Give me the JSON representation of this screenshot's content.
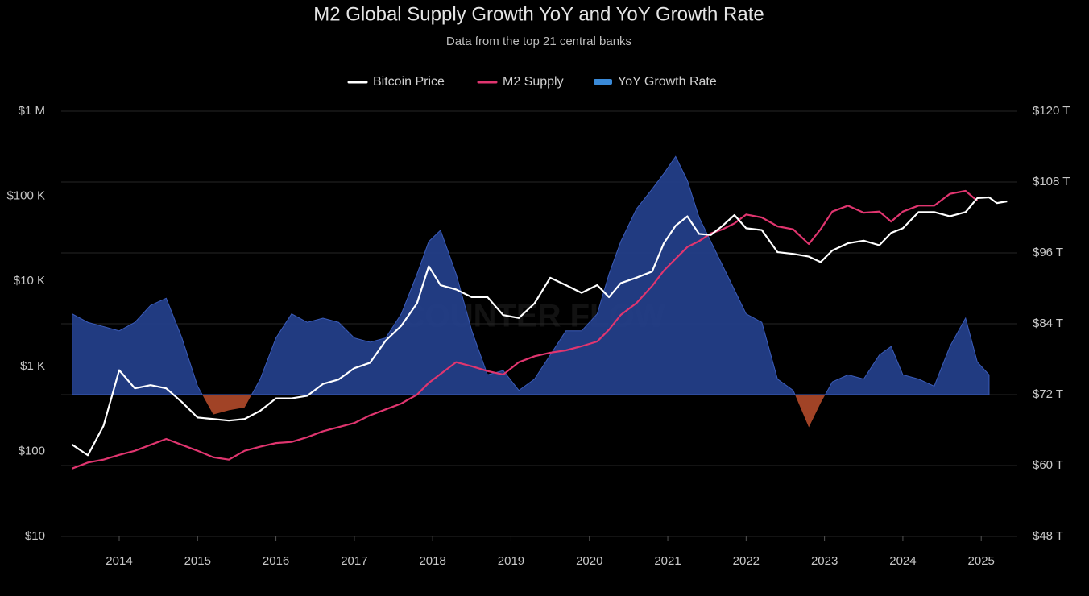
{
  "chart_data": {
    "type": "line",
    "title": "M2 Global Supply Growth YoY and YoY Growth Rate",
    "subtitle": "Data from the top 21 central banks",
    "watermark": "COUNTER FLOW",
    "x": [
      2013.4,
      2013.6,
      2013.8,
      2014.0,
      2014.2,
      2014.4,
      2014.6,
      2014.8,
      2015.0,
      2015.2,
      2015.4,
      2015.6,
      2015.8,
      2016.0,
      2016.2,
      2016.4,
      2016.6,
      2016.8,
      2017.0,
      2017.2,
      2017.4,
      2017.6,
      2017.8,
      2017.95,
      2018.1,
      2018.3,
      2018.5,
      2018.7,
      2018.9,
      2019.1,
      2019.3,
      2019.5,
      2019.7,
      2019.9,
      2020.1,
      2020.25,
      2020.4,
      2020.6,
      2020.8,
      2020.95,
      2021.1,
      2021.25,
      2021.4,
      2021.55,
      2021.7,
      2021.85,
      2022.0,
      2022.2,
      2022.4,
      2022.6,
      2022.8,
      2022.95,
      2023.1,
      2023.3,
      2023.5,
      2023.7,
      2023.85,
      2024.0,
      2024.2,
      2024.4,
      2024.6,
      2024.8,
      2024.95,
      2025.1,
      2025.2,
      2025.33
    ],
    "series": [
      {
        "name": "YoY Growth Rate",
        "type": "area",
        "axis": "y3",
        "color": "#25418f",
        "negative_color": "#b24a2a",
        "values": [
          5.7,
          5.1,
          4.8,
          4.5,
          5.1,
          6.3,
          6.8,
          4,
          0.6,
          -1.4,
          -1.1,
          -0.9,
          1.1,
          4,
          5.7,
          5.1,
          5.4,
          5.1,
          4,
          3.7,
          4,
          5.7,
          8.5,
          10.8,
          11.6,
          8.5,
          4.5,
          1.4,
          1.7,
          0.3,
          1.1,
          2.8,
          4.5,
          4.5,
          5.7,
          8.5,
          10.8,
          13.1,
          14.5,
          15.6,
          16.8,
          15.1,
          12.5,
          10.8,
          9.1,
          7.4,
          5.7,
          5.1,
          1.1,
          0.3,
          -2.3,
          -0.6,
          0.9,
          1.4,
          1.1,
          2.8,
          3.4,
          1.4,
          1.1,
          0.6,
          3.4,
          5.4,
          2.3,
          1.4,
          null,
          null
        ]
      },
      {
        "name": "M2 Supply",
        "type": "line",
        "axis": "y2",
        "color": "#e0356f",
        "values": [
          59.5,
          60.5,
          61,
          61.8,
          62.5,
          63.5,
          64.5,
          63.5,
          62.5,
          61.4,
          61,
          62.5,
          63.2,
          63.8,
          64,
          64.8,
          65.8,
          66.5,
          67.2,
          68.5,
          69.5,
          70.5,
          72,
          74,
          75.5,
          77.5,
          76.8,
          76,
          75.4,
          77.5,
          78.5,
          79.1,
          79.5,
          80.2,
          81,
          83,
          85.5,
          87.5,
          90.4,
          93,
          95,
          97,
          98,
          99.3,
          100,
          101,
          102.5,
          102,
          100.5,
          100,
          97.5,
          100,
          103,
          104,
          102.8,
          103,
          101.3,
          103,
          104,
          104,
          106,
          106.5,
          104.8,
          null,
          null,
          null
        ]
      },
      {
        "name": "Bitcoin Price",
        "type": "line",
        "axis": "y",
        "color": "#ffffff",
        "values": [
          120,
          90,
          200,
          900,
          550,
          600,
          550,
          380,
          250,
          240,
          230,
          240,
          300,
          420,
          420,
          450,
          620,
          700,
          950,
          1100,
          2000,
          3000,
          5500,
          15000,
          9000,
          8000,
          6500,
          6500,
          4000,
          3700,
          5500,
          11000,
          9000,
          7300,
          9000,
          6500,
          9500,
          11000,
          13000,
          28000,
          45000,
          58000,
          36000,
          35000,
          45000,
          60000,
          42000,
          40000,
          22000,
          21000,
          19500,
          16800,
          23000,
          28000,
          30000,
          26500,
          37000,
          42000,
          65000,
          65000,
          58000,
          65000,
          95000,
          97000,
          83000,
          87000
        ]
      }
    ],
    "legend_order": [
      2,
      1,
      0
    ],
    "xlim": [
      2013.26,
      2025.45
    ],
    "xticks": [
      2014,
      2015,
      2016,
      2017,
      2018,
      2019,
      2020,
      2021,
      2022,
      2023,
      2024,
      2025
    ],
    "ylog": true,
    "ylim": [
      10,
      1000000
    ],
    "yticks": [
      {
        "value": 10,
        "label": "$10"
      },
      {
        "value": 100,
        "label": "$100"
      },
      {
        "value": 1000,
        "label": "$1 K"
      },
      {
        "value": 10000,
        "label": "$10 K"
      },
      {
        "value": 100000,
        "label": "$100 K"
      },
      {
        "value": 1000000,
        "label": "$1 M"
      }
    ],
    "y2lim": [
      48,
      120
    ],
    "y2ticks": [
      {
        "value": 48,
        "label": "$48 T"
      },
      {
        "value": 60,
        "label": "$60 T"
      },
      {
        "value": 72,
        "label": "$72 T"
      },
      {
        "value": 84,
        "label": "$84 T"
      },
      {
        "value": 96,
        "label": "$96 T"
      },
      {
        "value": 108,
        "label": "$108 T"
      },
      {
        "value": 120,
        "label": "$120 T"
      }
    ],
    "y3lim": [
      -10,
      20
    ],
    "grid": true
  }
}
